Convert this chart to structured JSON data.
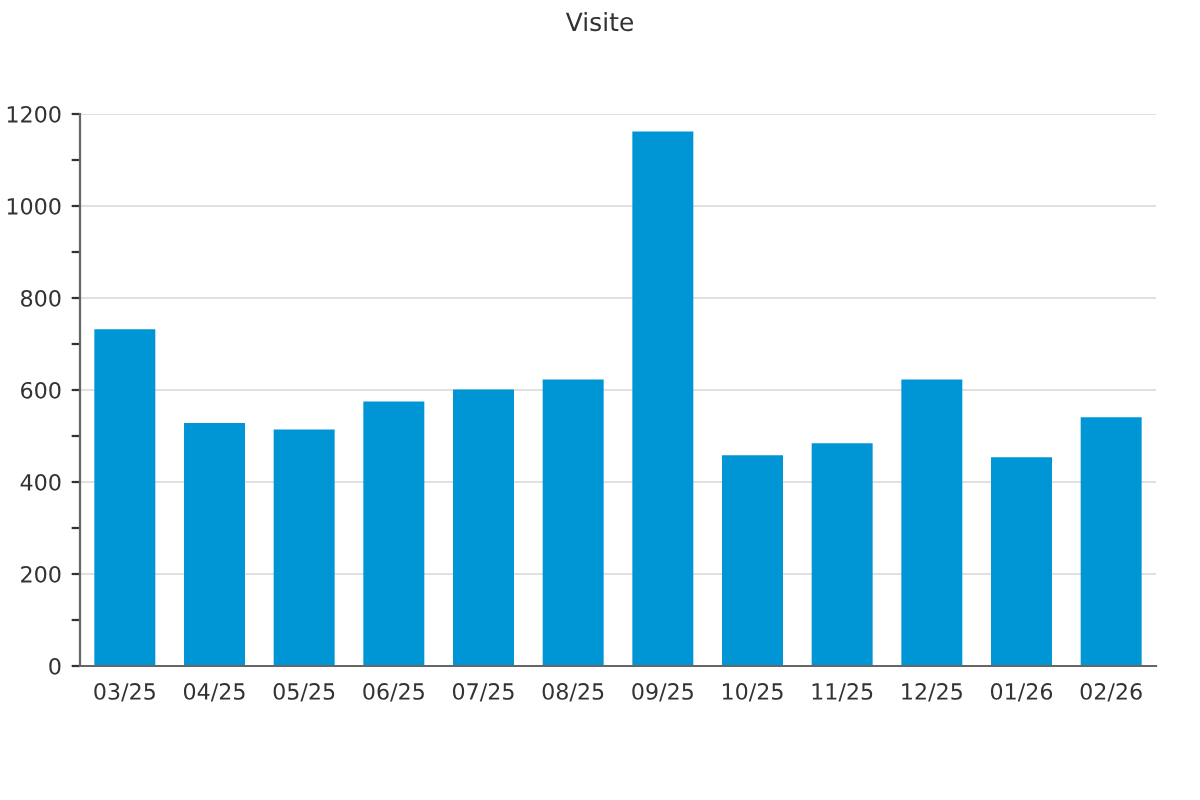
{
  "chart_data": {
    "type": "bar",
    "title": "Visite",
    "categories": [
      "03/25",
      "04/25",
      "05/25",
      "06/25",
      "07/25",
      "08/25",
      "09/25",
      "10/25",
      "11/25",
      "12/25",
      "01/26",
      "02/26"
    ],
    "series": [
      {
        "color": "#0096d6",
        "values": [
          732,
          528,
          514,
          575,
          601,
          623,
          1162,
          458,
          484,
          623,
          454,
          541
        ]
      }
    ],
    "ylim": [
      0,
      1200
    ],
    "yticks": [
      0,
      {
        "value": 100,
        "label": null
      },
      200,
      {
        "value": 300,
        "label": null
      },
      400,
      {
        "value": 500,
        "label": null
      },
      600,
      {
        "value": 700,
        "label": null
      },
      800,
      {
        "value": 900,
        "label": null
      },
      1000,
      {
        "value": 1100,
        "label": null
      },
      1200
    ],
    "grid": "y"
  }
}
